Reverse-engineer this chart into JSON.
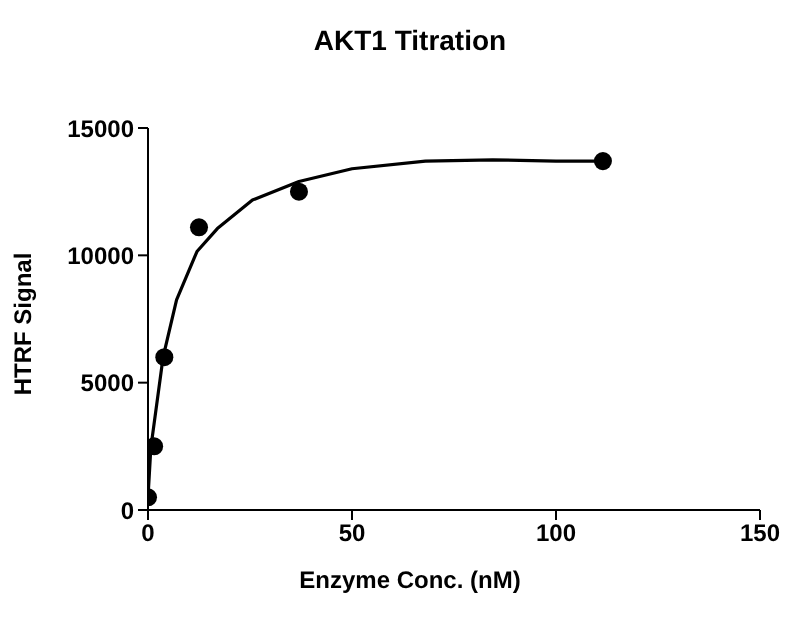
{
  "chart_data": {
    "type": "scatter",
    "title": "AKT1 Titration",
    "xlabel": "Enzyme Conc. (nM)",
    "ylabel": "HTRF Signal",
    "xlim": [
      0,
      150
    ],
    "xticks": [
      0,
      50,
      100,
      150
    ],
    "ylim": [
      0,
      15000
    ],
    "yticks": [
      0,
      5000,
      10000,
      15000
    ],
    "grid": false,
    "legend": false,
    "marker": "circle",
    "series": [
      {
        "color": "#000000",
        "x": [
          0,
          1.5,
          4,
          12.5,
          37,
          111.5
        ],
        "values": [
          500,
          2500,
          6000,
          11100,
          12500,
          13700
        ]
      },
      {
        "type": "line",
        "color": "#000000",
        "marker": "none",
        "line_style": "solid",
        "x": [
          0,
          0.7,
          3.7,
          7,
          12,
          17,
          25.6,
          37,
          50,
          68,
          84.5,
          100,
          111.5
        ],
        "values": [
          500,
          2450,
          6000,
          8250,
          10150,
          11050,
          12170,
          12900,
          13400,
          13700,
          13750,
          13700,
          13700
        ]
      }
    ]
  }
}
